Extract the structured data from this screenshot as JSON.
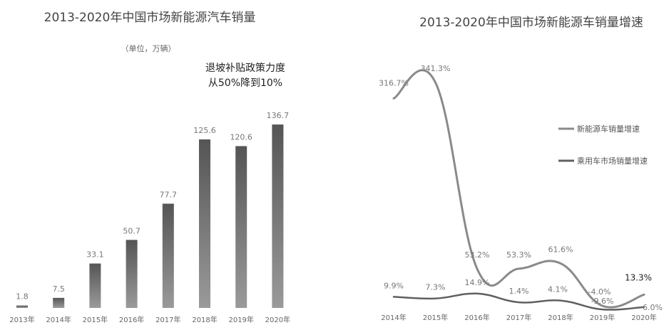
{
  "chart_data": [
    {
      "type": "bar",
      "title": "2013-2020年中国市场新能源汽车销量",
      "subtitle": "（单位，万辆）",
      "annotation_lines": [
        "退坡补贴政策力度",
        "从50%降到10%"
      ],
      "categories": [
        "2013年",
        "2014年",
        "2015年",
        "2016年",
        "2017年",
        "2018年",
        "2019年",
        "2020年"
      ],
      "values": [
        1.8,
        7.5,
        33.1,
        50.7,
        77.7,
        125.6,
        120.6,
        136.7
      ],
      "value_labels": [
        "1.8",
        "7.5",
        "33.1",
        "50.7",
        "77.7",
        "125.6",
        "120.6",
        "136.7"
      ],
      "ylim": [
        0,
        150
      ],
      "grid": false,
      "bar_color": "#555555"
    },
    {
      "type": "line",
      "title": "2013-2020年中国市场新能源车销量增速",
      "categories": [
        "2014年",
        "2015年",
        "2016年",
        "2017年",
        "2018年",
        "2019年",
        "2020年"
      ],
      "series": [
        {
          "name": "新能源车销量增速",
          "values": [
            316.7,
            341.3,
            53.2,
            53.3,
            61.6,
            -4.0,
            13.3
          ],
          "labels": [
            "316.7%",
            "341.3%",
            "53.2%",
            "53.3%",
            "61.6%",
            "-4.0%",
            "13.3%"
          ],
          "color": "#8a8a8a"
        },
        {
          "name": "乘用车市场销量增速",
          "values": [
            9.9,
            7.3,
            14.9,
            1.4,
            4.1,
            -9.6,
            -6.0
          ],
          "labels": [
            "9.9%",
            "7.3%",
            "14.9%",
            "1.4%",
            "4.1%",
            "-9.6%",
            "-6.0%"
          ],
          "color": "#606060"
        }
      ],
      "ylim": [
        -15,
        360
      ],
      "grid": false,
      "legend_position": "right"
    }
  ]
}
